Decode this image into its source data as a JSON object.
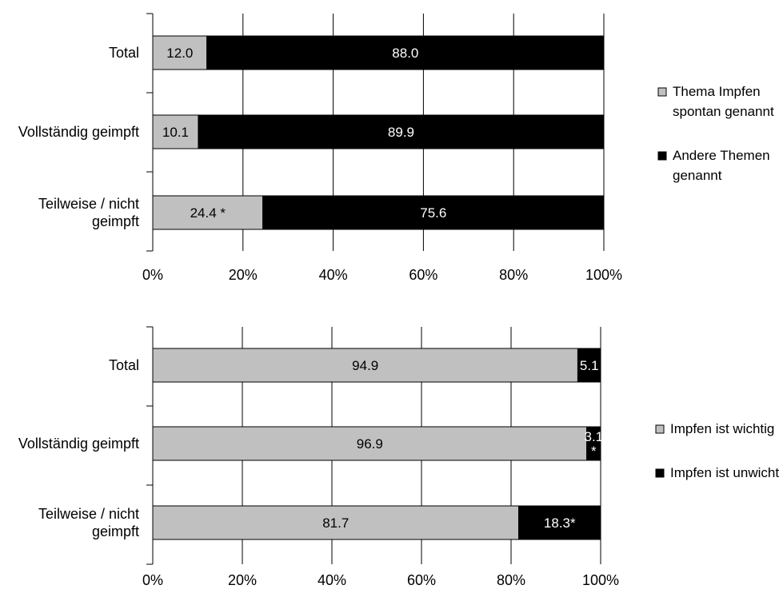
{
  "chart_data": [
    {
      "type": "bar",
      "stacked": true,
      "orientation": "horizontal",
      "categories": [
        "Total",
        "Vollständig geimpft",
        "Teilweise / nicht geimpft"
      ],
      "series": [
        {
          "name": "Thema Impfen spontan genannt",
          "values": [
            12.0,
            10.1,
            24.4
          ],
          "labels": [
            "12.0",
            "10.1",
            "24.4 *"
          ],
          "color": "#c0c0c0"
        },
        {
          "name": "Andere Themen genannt",
          "values": [
            88.0,
            89.9,
            75.6
          ],
          "labels": [
            "88.0",
            "89.9",
            "75.6"
          ],
          "color": "#000000"
        }
      ],
      "x_ticks": [
        "0%",
        "20%",
        "40%",
        "60%",
        "80%",
        "100%"
      ],
      "xlim": [
        0,
        100
      ],
      "grid": true,
      "legend_position": "right"
    },
    {
      "type": "bar",
      "stacked": true,
      "orientation": "horizontal",
      "categories": [
        "Total",
        "Vollständig geimpft",
        "Teilweise / nicht geimpft"
      ],
      "series": [
        {
          "name": "Impfen ist wichtig",
          "values": [
            94.9,
            96.9,
            81.7
          ],
          "labels": [
            "94.9",
            "96.9",
            "81.7"
          ],
          "color": "#c0c0c0"
        },
        {
          "name": "Impfen ist unwichtig",
          "values": [
            5.1,
            3.1,
            18.3
          ],
          "labels": [
            "5.1",
            "3.1 *",
            "18.3*"
          ],
          "color": "#000000"
        }
      ],
      "x_ticks": [
        "0%",
        "20%",
        "40%",
        "60%",
        "80%",
        "100%"
      ],
      "xlim": [
        0,
        100
      ],
      "grid": true,
      "legend_position": "right"
    }
  ]
}
